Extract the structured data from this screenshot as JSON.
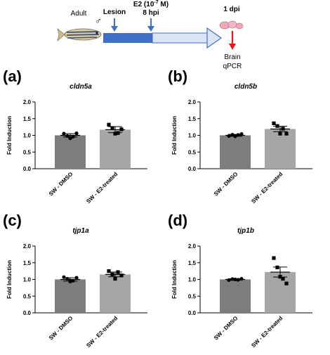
{
  "timeline": {
    "adult_label": "Adult",
    "male_symbol": "♂",
    "lesion_label": "Lesion",
    "e2_label": "E2 (10",
    "e2_exp": "-7",
    "e2_unit": " M)",
    "hpi_label": "8 hpi",
    "dpi_label": "1 dpi",
    "brain_label": "Brain",
    "qpcr_label": "qPCR",
    "colors": {
      "arrow_dark": "#3f6fc2",
      "arrow_light": "#dbe4f4",
      "marker": "#3f6fc2",
      "red_arrow": "#e8151b"
    }
  },
  "chart_data": [
    {
      "type": "bar",
      "panel_letter": "(a)",
      "title": "cldn5a",
      "ylabel": "Fold Induction",
      "ylim": [
        0,
        2.0
      ],
      "yticks": [
        "0.0",
        "0.5",
        "1.0",
        "1.5",
        "2.0"
      ],
      "categories": [
        "SW - DMSO",
        "SW - E2-treated"
      ],
      "values": [
        1.0,
        1.17
      ],
      "sem": [
        0.05,
        0.09
      ],
      "points": [
        [
          1.05,
          0.98,
          0.91,
          0.96,
          1.06
        ],
        [
          1.32,
          1.22,
          1.05,
          1.07,
          1.18
        ]
      ],
      "bar_colors": [
        "#7d7d7d",
        "#a6a6a8"
      ]
    },
    {
      "type": "bar",
      "panel_letter": "(b)",
      "title": "cldn5b",
      "ylabel": "Fold Induction",
      "ylim": [
        0,
        2.0
      ],
      "yticks": [
        "0.0",
        "0.5",
        "1.0",
        "1.5",
        "2.0"
      ],
      "categories": [
        "SW - DMSO",
        "SW - E2-treated"
      ],
      "values": [
        1.0,
        1.19
      ],
      "sem": [
        0.03,
        0.08
      ],
      "points": [
        [
          0.98,
          1.02,
          0.97,
          1.01,
          1.04
        ],
        [
          1.36,
          1.28,
          1.05,
          1.2,
          1.05
        ]
      ],
      "bar_colors": [
        "#7d7d7d",
        "#a6a6a8"
      ]
    },
    {
      "type": "bar",
      "panel_letter": "(c)",
      "title": "tjp1a",
      "ylabel": "Fold Induction",
      "ylim": [
        0,
        2.0
      ],
      "yticks": [
        "0.0",
        "0.5",
        "1.0",
        "1.5",
        "2.0"
      ],
      "categories": [
        "SW - DMSO",
        "SW - E2-treated"
      ],
      "values": [
        1.0,
        1.15
      ],
      "sem": [
        0.05,
        0.07
      ],
      "points": [
        [
          1.07,
          1.02,
          0.94,
          0.96,
          1.05
        ],
        [
          1.25,
          1.15,
          1.02,
          1.22,
          1.12
        ]
      ],
      "bar_colors": [
        "#7d7d7d",
        "#a6a6a8"
      ]
    },
    {
      "type": "bar",
      "panel_letter": "(d)",
      "title": "tjp1b",
      "ylabel": "Fold Induction",
      "ylim": [
        0,
        2.0
      ],
      "yticks": [
        "0.0",
        "0.5",
        "1.0",
        "1.5",
        "2.0"
      ],
      "categories": [
        "SW - DMSO",
        "SW - E2-treated"
      ],
      "values": [
        1.0,
        1.22
      ],
      "sem": [
        0.02,
        0.15
      ],
      "points": [
        [
          0.98,
          1.01,
          1.0,
          0.99,
          1.02
        ],
        [
          1.64,
          1.36,
          1.08,
          1.02,
          0.88
        ]
      ],
      "bar_colors": [
        "#7d7d7d",
        "#a6a6a8"
      ]
    }
  ]
}
